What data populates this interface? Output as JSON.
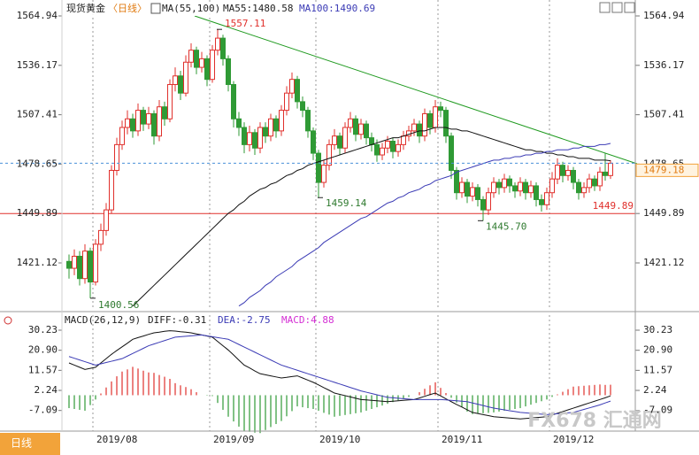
{
  "chart_data": [
    {
      "type": "candlestick",
      "title": "现货黄金",
      "subtitle": "〈日线〉",
      "indicator": "MA(55,100)",
      "up_color": "#e0302c",
      "down_color": "#2f9a35",
      "categories": [
        null,
        null,
        null,
        null,
        null,
        "2019/08",
        null,
        null,
        null,
        null,
        null,
        null,
        null,
        null,
        null,
        null,
        null,
        null,
        null,
        null,
        null,
        null,
        null,
        null,
        null,
        null,
        null,
        "2019/09",
        null,
        null,
        null,
        null,
        null,
        null,
        null,
        null,
        null,
        null,
        null,
        null,
        null,
        null,
        null,
        null,
        null,
        null,
        null,
        "2019/10",
        null,
        null,
        null,
        null,
        null,
        null,
        null,
        null,
        null,
        null,
        null,
        null,
        null,
        null,
        null,
        null,
        null,
        null,
        null,
        null,
        null,
        null,
        "2019/11",
        null,
        null,
        null,
        null,
        null,
        null,
        null,
        null,
        null,
        null,
        null,
        null,
        null,
        null,
        null,
        null,
        null,
        null,
        null,
        null,
        "2019/12",
        null,
        null,
        null,
        null,
        null,
        null,
        null,
        null,
        null,
        null,
        null
      ],
      "open": [
        1422,
        1418,
        1425,
        1412,
        1428,
        1410,
        1432,
        1440,
        1452,
        1475,
        1490,
        1500,
        1505,
        1498,
        1510,
        1502,
        1508,
        1495,
        1512,
        1505,
        1525,
        1530,
        1520,
        1538,
        1545,
        1535,
        1540,
        1528,
        1545,
        1552,
        1540,
        1525,
        1505,
        1500,
        1490,
        1497,
        1488,
        1500,
        1495,
        1505,
        1498,
        1510,
        1520,
        1528,
        1515,
        1510,
        1498,
        1485,
        1468,
        1478,
        1490,
        1495,
        1488,
        1500,
        1505,
        1496,
        1502,
        1494,
        1490,
        1484,
        1488,
        1492,
        1486,
        1490,
        1495,
        1498,
        1502,
        1495,
        1508,
        1500,
        1512,
        1510,
        1495,
        1475,
        1462,
        1468,
        1460,
        1465,
        1458,
        1452,
        1462,
        1468,
        1465,
        1470,
        1466,
        1463,
        1468,
        1462,
        1466,
        1458,
        1455,
        1462,
        1470,
        1478,
        1472,
        1475,
        1468,
        1462,
        1465,
        1470,
        1466,
        1474,
        1472
      ],
      "high": [
        1426,
        1429,
        1428,
        1432,
        1430,
        1435,
        1444,
        1456,
        1478,
        1494,
        1504,
        1510,
        1508,
        1514,
        1512,
        1512,
        1510,
        1516,
        1515,
        1528,
        1535,
        1533,
        1542,
        1549,
        1547,
        1544,
        1542,
        1548,
        1557.11,
        1554,
        1542,
        1527,
        1509,
        1503,
        1501,
        1499,
        1503,
        1503,
        1508,
        1507,
        1513,
        1524,
        1532,
        1530,
        1518,
        1512,
        1500,
        1487,
        1481,
        1493,
        1499,
        1497,
        1503,
        1509,
        1507,
        1505,
        1504,
        1497,
        1493,
        1491,
        1495,
        1494,
        1493,
        1498,
        1501,
        1505,
        1504,
        1511,
        1510,
        1516,
        1515,
        1512,
        1497,
        1477,
        1471,
        1470,
        1468,
        1467,
        1460,
        1465,
        1471,
        1470,
        1473,
        1472,
        1468,
        1471,
        1470,
        1469,
        1468,
        1461,
        1465,
        1474,
        1482,
        1480,
        1478,
        1477,
        1470,
        1468,
        1473,
        1472,
        1477,
        1485,
        1481
      ],
      "low": [
        1412,
        1414,
        1408,
        1409,
        1400.56,
        1408,
        1428,
        1437,
        1450,
        1472,
        1487,
        1496,
        1494,
        1495,
        1498,
        1499,
        1490,
        1492,
        1501,
        1503,
        1521,
        1516,
        1518,
        1535,
        1531,
        1532,
        1524,
        1526,
        1542,
        1536,
        1521,
        1500,
        1495,
        1485,
        1486,
        1484,
        1485,
        1491,
        1492,
        1494,
        1495,
        1507,
        1517,
        1511,
        1506,
        1494,
        1481,
        1459.14,
        1465,
        1475,
        1487,
        1484,
        1485,
        1497,
        1492,
        1493,
        1490,
        1486,
        1480,
        1481,
        1485,
        1482,
        1483,
        1487,
        1492,
        1495,
        1491,
        1492,
        1496,
        1497,
        1506,
        1491,
        1470,
        1458,
        1459,
        1456,
        1457,
        1454,
        1445.7,
        1449,
        1459,
        1461,
        1462,
        1462,
        1459,
        1460,
        1458,
        1459,
        1454,
        1451,
        1452,
        1459,
        1467,
        1468,
        1469,
        1464,
        1458,
        1459,
        1462,
        1463,
        1463,
        1469,
        1470
      ],
      "close": [
        1418,
        1425,
        1412,
        1428,
        1410,
        1432,
        1440,
        1452,
        1475,
        1490,
        1500,
        1505,
        1498,
        1510,
        1502,
        1508,
        1495,
        1512,
        1505,
        1525,
        1530,
        1520,
        1538,
        1545,
        1535,
        1540,
        1528,
        1545,
        1552,
        1540,
        1525,
        1505,
        1500,
        1490,
        1497,
        1488,
        1500,
        1495,
        1505,
        1498,
        1510,
        1520,
        1528,
        1515,
        1510,
        1498,
        1485,
        1468,
        1478,
        1490,
        1495,
        1488,
        1500,
        1505,
        1496,
        1502,
        1494,
        1490,
        1484,
        1488,
        1492,
        1486,
        1490,
        1495,
        1498,
        1502,
        1495,
        1508,
        1500,
        1512,
        1510,
        1495,
        1475,
        1462,
        1468,
        1460,
        1465,
        1458,
        1452,
        1462,
        1468,
        1465,
        1470,
        1466,
        1463,
        1468,
        1462,
        1466,
        1458,
        1455,
        1462,
        1470,
        1478,
        1472,
        1475,
        1468,
        1462,
        1465,
        1470,
        1466,
        1474,
        1472,
        1479.18
      ],
      "series": [
        {
          "name": "MA55:1480.58",
          "color": "#111111",
          "values": [
            null,
            null,
            null,
            null,
            null,
            null,
            null,
            null,
            null,
            null,
            null,
            null,
            1396,
            1399,
            1402,
            1405,
            1408,
            1411,
            1414,
            1417,
            1420,
            1423,
            1426,
            1429,
            1432,
            1435,
            1438,
            1441,
            1444,
            1447,
            1450,
            1452,
            1455,
            1457,
            1460,
            1462,
            1464,
            1465,
            1467,
            1468,
            1470,
            1472,
            1473,
            1475,
            1476,
            1478,
            1479,
            1480,
            1481,
            1482,
            1483,
            1484,
            1485,
            1486,
            1487,
            1488,
            1489,
            1490,
            1491,
            1492,
            1493,
            1494,
            1494,
            1495,
            1496,
            1497,
            1498,
            1498,
            1499,
            1500,
            1500,
            1500,
            1499,
            1499,
            1498,
            1498,
            1497,
            1496,
            1495,
            1494,
            1493,
            1492,
            1491,
            1490,
            1489,
            1488,
            1487,
            1487,
            1486,
            1486,
            1485,
            1485,
            1484,
            1484,
            1483,
            1483,
            1482,
            1482,
            1482,
            1481,
            1481,
            1481,
            1480.58
          ]
        },
        {
          "name": "MA100:1490.69",
          "color": "#3b3bb5",
          "values": [
            null,
            null,
            null,
            null,
            null,
            null,
            null,
            null,
            null,
            null,
            null,
            null,
            null,
            null,
            null,
            null,
            null,
            null,
            null,
            null,
            null,
            null,
            null,
            null,
            null,
            null,
            null,
            null,
            null,
            null,
            null,
            null,
            1396,
            1398,
            1401,
            1403,
            1405,
            1408,
            1410,
            1413,
            1415,
            1417,
            1419,
            1422,
            1424,
            1426,
            1428,
            1430,
            1433,
            1435,
            1437,
            1439,
            1441,
            1443,
            1445,
            1447,
            1448,
            1450,
            1452,
            1454,
            1456,
            1457,
            1459,
            1460,
            1462,
            1463,
            1464,
            1466,
            1467,
            1469,
            1470,
            1471,
            1472,
            1474,
            1475,
            1476,
            1477,
            1478,
            1479,
            1480,
            1481,
            1481,
            1482,
            1482,
            1483,
            1483,
            1484,
            1484,
            1485,
            1485,
            1486,
            1486,
            1487,
            1487,
            1487,
            1488,
            1488,
            1489,
            1489,
            1489,
            1490,
            1490,
            1490.69
          ]
        }
      ],
      "support": {
        "value": 1449.89,
        "label": "1449.89",
        "color": "#e0302c"
      },
      "annotations": [
        {
          "value": 1557.11,
          "label": "1557.11"
        },
        {
          "value": 1459.14,
          "label": "1459.14"
        },
        {
          "value": 1445.7,
          "label": "1445.70"
        },
        {
          "value": 1400.56,
          "label": "1400.56"
        }
      ],
      "ylim": [
        1393.8,
        1574.22
      ],
      "yticks": [
        1564.94,
        1536.17,
        1507.41,
        1478.65,
        1449.89,
        1421.12
      ]
    },
    {
      "type": "macd",
      "title": "MACD(26,12,9)",
      "series": [
        {
          "name": "DIFF:-0.31",
          "color": "#111111",
          "values": [
            15,
            14,
            13,
            12,
            12.5,
            13,
            15,
            17,
            19,
            20.8,
            22.5,
            24.2,
            26,
            26.8,
            27.5,
            28.3,
            29,
            29.3,
            29.7,
            30,
            29.8,
            29.5,
            29.3,
            29,
            28.5,
            28,
            27.5,
            27,
            25,
            23,
            21,
            18.7,
            16.3,
            14,
            12.7,
            11.3,
            10,
            9.5,
            9,
            8.5,
            8,
            8.3,
            8.7,
            9,
            8,
            7,
            6,
            4.8,
            3.5,
            2.3,
            1,
            0.4,
            -0.2,
            -0.8,
            -1.4,
            -2,
            -2.2,
            -2.4,
            -2.6,
            -2.8,
            -3,
            -2.8,
            -2.6,
            -2.4,
            -2.2,
            -2,
            -1.3,
            -0.5,
            0.3,
            1,
            -0.3,
            -1.7,
            -3,
            -4.3,
            -5.5,
            -6.8,
            -8,
            -8.5,
            -9,
            -9.5,
            -10,
            -10.2,
            -10.4,
            -10.6,
            -10.8,
            -11,
            -10.8,
            -10.6,
            -10.4,
            -10.2,
            -10,
            -9.2,
            -8.4,
            -7.6,
            -6.8,
            -6,
            -5.2,
            -4.4,
            -3.6,
            -2.8,
            -2,
            -1.2,
            -0.31
          ]
        },
        {
          "name": "DEA:-2.75",
          "color": "#3b3bb5",
          "values": [
            18,
            17.2,
            16.4,
            15.6,
            14.8,
            14,
            14.6,
            15.2,
            15.8,
            16.4,
            17,
            18.2,
            19.4,
            20.6,
            21.8,
            23,
            23.8,
            24.6,
            25.4,
            26.2,
            27,
            27.2,
            27.4,
            27.6,
            27.8,
            28,
            27.6,
            27.2,
            26.8,
            26.4,
            26,
            24.8,
            23.6,
            22.4,
            21.2,
            20,
            18.8,
            17.6,
            16.4,
            15.2,
            14,
            13.2,
            12.4,
            11.6,
            10.8,
            10,
            9.2,
            8.4,
            7.6,
            6.8,
            6,
            5.2,
            4.4,
            3.6,
            2.8,
            2,
            1.4,
            0.8,
            0.2,
            -0.4,
            -1,
            -1.2,
            -1.4,
            -1.6,
            -1.8,
            -2,
            -2,
            -2,
            -2,
            -2,
            -2,
            -2.2,
            -2.4,
            -2.6,
            -2.8,
            -3,
            -3.6,
            -4.2,
            -4.8,
            -5.4,
            -6,
            -6.4,
            -6.8,
            -7.2,
            -7.6,
            -8,
            -8.2,
            -8.4,
            -8.6,
            -8.8,
            -9,
            -8.8,
            -8.6,
            -8.4,
            -8.2,
            -8,
            -7.3,
            -6.6,
            -5.9,
            -5.2,
            -4.5,
            -3.6,
            -2.75
          ]
        },
        {
          "name": "MACD:4.88",
          "color": "#d42fd4",
          "up_color": "#e0302c",
          "down_color": "#2f9a35",
          "values": [
            -6,
            -6.4,
            -6.8,
            -7.2,
            -4.6,
            -2,
            0.8,
            3.6,
            6.4,
            8.8,
            11,
            12,
            13.2,
            12.4,
            11.4,
            10.6,
            10.4,
            9.4,
            8.6,
            7.6,
            5.6,
            4.6,
            3.8,
            2.8,
            1.4,
            0,
            -0.2,
            -0.4,
            -3.6,
            -6.8,
            -10,
            -12.2,
            -14.6,
            -16.8,
            -17,
            -17.4,
            -17.6,
            -16.2,
            -14.8,
            -13.4,
            -12,
            -9.8,
            -7.4,
            -5.2,
            -5.6,
            -6,
            -6.4,
            -7.2,
            -8.2,
            -9,
            -10,
            -9.6,
            -9.2,
            -8.8,
            -8.4,
            -8,
            -7.2,
            -6.4,
            -5.6,
            -4.8,
            -4,
            -3.2,
            -2.4,
            -1.6,
            -0.8,
            0,
            1.4,
            3,
            4.6,
            6,
            3.4,
            1,
            -1.2,
            -3.4,
            -5.4,
            -7.6,
            -8.8,
            -8.6,
            -8.4,
            -8.2,
            -8,
            -7.6,
            -7.2,
            -6.8,
            -6.4,
            -6,
            -5.2,
            -4.4,
            -3.6,
            -2.8,
            -2,
            -0.8,
            0.4,
            1.6,
            2.8,
            4,
            4.2,
            4.4,
            4.6,
            4.8,
            5,
            4.8,
            4.88
          ]
        }
      ],
      "ylim": [
        -15.86,
        37.23
      ],
      "yticks": [
        30.23,
        {
          "value": 20.9,
          "label": "20.90"
        },
        11.57,
        2.24,
        -7.09
      ]
    }
  ],
  "tab": "日线",
  "watermark": "FX678 汇通网"
}
